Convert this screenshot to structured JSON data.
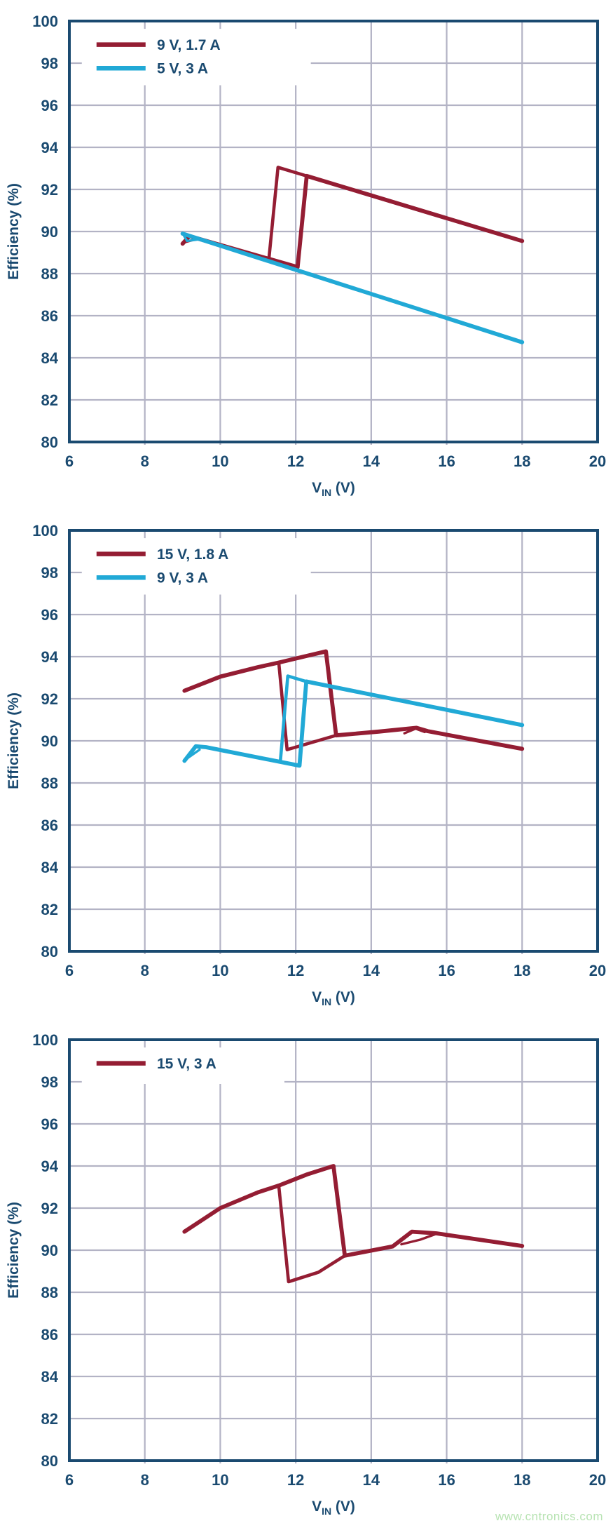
{
  "watermark": {
    "text": "www.cntronics.com",
    "color": "#b7e3b2"
  },
  "colors": {
    "navy": "#1a4a70",
    "maroon": "#941d33",
    "cyan": "#21a9d6",
    "grid": "#b3b3c5",
    "legend_bg": "#ffffff",
    "background": "#ffffff"
  },
  "axis": {
    "x_title_main": "V",
    "x_title_sub": "IN",
    "x_title_unit": " (V)",
    "y_title": "Efficiency (%)",
    "x_range": [
      6,
      20
    ],
    "y_range": [
      80,
      100
    ],
    "x_ticks": [
      6,
      8,
      10,
      12,
      14,
      16,
      18,
      20
    ],
    "y_ticks": [
      80,
      82,
      84,
      86,
      88,
      90,
      92,
      94,
      96,
      98,
      100
    ],
    "grid": true
  },
  "chart_data": [
    {
      "id": "top",
      "type": "line",
      "title": "",
      "xlabel": "VIN (V)",
      "ylabel": "Efficiency (%)",
      "xlim": [
        6,
        20
      ],
      "ylim": [
        80,
        100
      ],
      "legend_position": "top-left",
      "legend_box_right_v": 12.4,
      "legend": [
        {
          "label": "9 V, 1.7 A",
          "color": "#941d33"
        },
        {
          "label": "5 V, 3 A",
          "color": "#21a9d6"
        }
      ],
      "series": [
        {
          "name": "9 V, 1.7 A",
          "color": "#941d33",
          "role": "main",
          "points": [
            [
              9.0,
              89.42
            ],
            [
              9.18,
              89.78
            ],
            [
              12.05,
              88.31
            ],
            [
              12.29,
              92.64
            ],
            [
              18,
              89.55
            ]
          ]
        },
        {
          "name": "9 V, 1.7 A hysteresis loop",
          "color": "#941d33",
          "role": "loop",
          "points": [
            [
              12.29,
              92.64
            ],
            [
              11.53,
              93.05
            ],
            [
              11.29,
              88.72
            ]
          ]
        },
        {
          "name": "9 V, 1.7 A start artifact",
          "color": "#941d33",
          "role": "spur",
          "points": [
            [
              9.02,
              89.47
            ],
            [
              9.4,
              89.66
            ]
          ]
        },
        {
          "name": "5 V, 3 A",
          "color": "#21a9d6",
          "role": "main",
          "points": [
            [
              9.0,
              89.9
            ],
            [
              18,
              84.74
            ]
          ]
        },
        {
          "name": "5 V, 3 A start artifact",
          "color": "#21a9d6",
          "role": "spur",
          "points": [
            [
              9.02,
              89.86
            ],
            [
              9.12,
              89.55
            ],
            [
              9.4,
              89.62
            ]
          ]
        }
      ]
    },
    {
      "id": "middle",
      "type": "line",
      "title": "",
      "xlabel": "VIN (V)",
      "ylabel": "Efficiency (%)",
      "xlim": [
        6,
        20
      ],
      "ylim": [
        80,
        100
      ],
      "legend_position": "top-left",
      "legend_box_right_v": 12.4,
      "legend": [
        {
          "label": "15 V, 1.8 A",
          "color": "#941d33"
        },
        {
          "label": "9 V, 3 A",
          "color": "#21a9d6"
        }
      ],
      "series": [
        {
          "name": "15 V, 1.8 A",
          "color": "#941d33",
          "role": "main",
          "points": [
            [
              9.05,
              92.38
            ],
            [
              10,
              93.05
            ],
            [
              11,
              93.5
            ],
            [
              11.55,
              93.72
            ],
            [
              12.3,
              94.04
            ],
            [
              12.8,
              94.25
            ],
            [
              13.07,
              90.26
            ],
            [
              14.2,
              90.44
            ],
            [
              15.2,
              90.62
            ],
            [
              15.5,
              90.46
            ],
            [
              18,
              89.62
            ]
          ]
        },
        {
          "name": "15 V, 1.8 A hysteresis loop",
          "color": "#941d33",
          "role": "loop",
          "points": [
            [
              11.55,
              93.72
            ],
            [
              11.77,
              89.58
            ],
            [
              13.07,
              90.26
            ]
          ]
        },
        {
          "name": "15 V, 1.8 A bump artifact",
          "color": "#941d33",
          "role": "spur",
          "points": [
            [
              14.88,
              90.36
            ],
            [
              15.18,
              90.58
            ],
            [
              15.42,
              90.42
            ]
          ]
        },
        {
          "name": "9 V, 3 A",
          "color": "#21a9d6",
          "role": "main",
          "points": [
            [
              9.05,
              89.05
            ],
            [
              9.35,
              89.74
            ],
            [
              9.62,
              89.7
            ],
            [
              12.1,
              88.82
            ],
            [
              12.28,
              92.82
            ],
            [
              18,
              90.75
            ]
          ]
        },
        {
          "name": "9 V, 3 A hysteresis loop",
          "color": "#21a9d6",
          "role": "loop",
          "points": [
            [
              12.28,
              92.82
            ],
            [
              11.79,
              93.08
            ],
            [
              11.59,
              89.0
            ]
          ]
        },
        {
          "name": "9 V, 3 A start artifact",
          "color": "#21a9d6",
          "role": "spur",
          "points": [
            [
              9.07,
              89.1
            ],
            [
              9.45,
              89.58
            ]
          ]
        }
      ]
    },
    {
      "id": "bottom",
      "type": "line",
      "title": "",
      "xlabel": "VIN (V)",
      "ylabel": "Efficiency (%)",
      "xlim": [
        6,
        20
      ],
      "ylim": [
        80,
        100
      ],
      "legend_position": "top-left",
      "legend_box_right_v": 11.7,
      "legend": [
        {
          "label": "15 V, 3 A",
          "color": "#941d33"
        }
      ],
      "series": [
        {
          "name": "15 V, 3 A",
          "color": "#941d33",
          "role": "main",
          "points": [
            [
              9.05,
              90.88
            ],
            [
              10,
              92.0
            ],
            [
              11,
              92.75
            ],
            [
              11.55,
              93.07
            ],
            [
              12.3,
              93.6
            ],
            [
              13.0,
              94.0
            ],
            [
              13.3,
              89.74
            ],
            [
              14.57,
              90.18
            ],
            [
              15.08,
              90.88
            ],
            [
              15.73,
              90.8
            ],
            [
              18,
              90.2
            ]
          ]
        },
        {
          "name": "15 V, 3 A hysteresis loop",
          "color": "#941d33",
          "role": "loop",
          "points": [
            [
              11.55,
              93.07
            ],
            [
              11.81,
              88.5
            ],
            [
              12.6,
              88.95
            ],
            [
              13.3,
              89.74
            ]
          ]
        },
        {
          "name": "15 V, 3 A eye artifact",
          "color": "#941d33",
          "role": "spur",
          "points": [
            [
              14.8,
              90.28
            ],
            [
              15.3,
              90.5
            ],
            [
              15.73,
              90.78
            ]
          ]
        }
      ]
    }
  ]
}
